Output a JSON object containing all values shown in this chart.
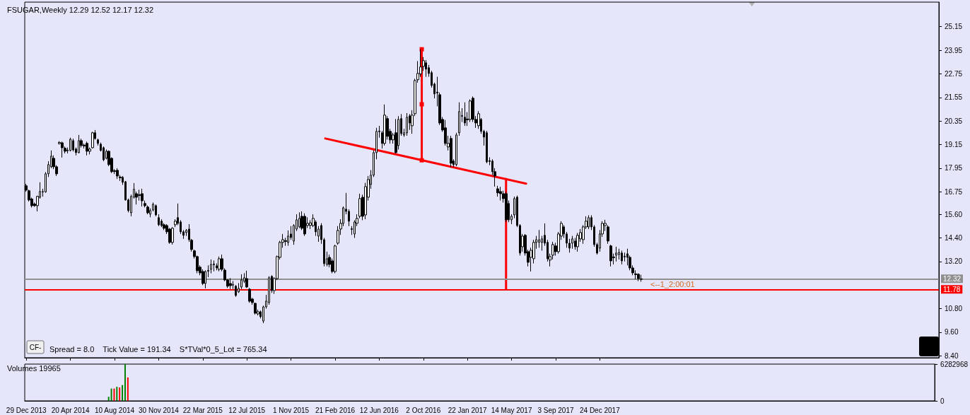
{
  "chart_data": [
    {
      "type": "candlestick",
      "title": "FSUGAR,Weekly 12.29 12.52 12.17 12.32",
      "color": "#000000",
      "xlim": [
        "2013-12-25",
        "2020-05-03"
      ],
      "ylim": [
        8.3,
        26.4
      ],
      "xticks": [
        {
          "value": "2013-12-29",
          "label": "29 Dec 2013"
        },
        {
          "value": "2014-04-20",
          "label": "20 Apr 2014"
        },
        {
          "value": "2014-08-10",
          "label": "10 Aug 2014"
        },
        {
          "value": "2014-11-30",
          "label": "30 Nov 2014"
        },
        {
          "value": "2015-03-22",
          "label": "22 Mar 2015"
        },
        {
          "value": "2015-07-12",
          "label": "12 Jul 2015"
        },
        {
          "value": "2015-11-01",
          "label": "1 Nov 2015"
        },
        {
          "value": "2016-02-21",
          "label": "21 Feb 2016"
        },
        {
          "value": "2016-06-12",
          "label": "12 Jun 2016"
        },
        {
          "value": "2016-10-02",
          "label": "2 Oct 2016"
        },
        {
          "value": "2017-01-22",
          "label": "22 Jan 2017"
        },
        {
          "value": "2017-05-14",
          "label": "14 May 2017"
        },
        {
          "value": "2017-09-03",
          "label": "3 Sep 2017"
        },
        {
          "value": "2017-12-24",
          "label": "24 Dec 2017"
        }
      ],
      "yticks": [
        {
          "value": 8.4,
          "label": "8.40"
        },
        {
          "value": 9.6,
          "label": "9.60"
        },
        {
          "value": 10.8,
          "label": "10.80"
        },
        {
          "value": 13.2,
          "label": "13.20"
        },
        {
          "value": 14.4,
          "label": "14.40"
        },
        {
          "value": 15.6,
          "label": "15.60"
        },
        {
          "value": 16.75,
          "label": "16.75"
        },
        {
          "value": 17.95,
          "label": "17.95"
        },
        {
          "value": 19.15,
          "label": "19.15"
        },
        {
          "value": 20.35,
          "label": "20.35"
        },
        {
          "value": 21.55,
          "label": "21.55"
        },
        {
          "value": 22.75,
          "label": "22.75"
        },
        {
          "value": 23.95,
          "label": "23.95"
        },
        {
          "value": 25.15,
          "label": "25.15"
        }
      ],
      "x": [
        "2013-12-29",
        "2014-01-05",
        "2014-01-12",
        "2014-01-19",
        "2014-01-26",
        "2014-02-02",
        "2014-02-09",
        "2014-02-16",
        "2014-02-23",
        "2014-03-02",
        "2014-03-09",
        "2014-03-16",
        "2014-03-23",
        "2014-03-30",
        "2014-04-06",
        "2014-04-13",
        "2014-04-20",
        "2014-04-27",
        "2014-05-04",
        "2014-05-11",
        "2014-05-18",
        "2014-05-25",
        "2014-06-01",
        "2014-06-08",
        "2014-06-15",
        "2014-06-22",
        "2014-06-29",
        "2014-07-06",
        "2014-07-13",
        "2014-07-20",
        "2014-07-27",
        "2014-08-03",
        "2014-08-10",
        "2014-08-17",
        "2014-08-24",
        "2014-08-31",
        "2014-09-07",
        "2014-09-14",
        "2014-09-21",
        "2014-09-28",
        "2014-10-05",
        "2014-10-12",
        "2014-10-19",
        "2014-10-26",
        "2014-11-02",
        "2014-11-09",
        "2014-11-16",
        "2014-11-23",
        "2014-11-30",
        "2014-12-07",
        "2014-12-14",
        "2014-12-21",
        "2014-12-28",
        "2015-01-04",
        "2015-01-11",
        "2015-01-18",
        "2015-01-25",
        "2015-02-01",
        "2015-02-08",
        "2015-02-15",
        "2015-02-22",
        "2015-03-01",
        "2015-03-08",
        "2015-03-15",
        "2015-03-22",
        "2015-03-29",
        "2015-04-05",
        "2015-04-12",
        "2015-04-19",
        "2015-04-26",
        "2015-05-03",
        "2015-05-10",
        "2015-05-17",
        "2015-05-24",
        "2015-05-31",
        "2015-06-07",
        "2015-06-14",
        "2015-06-21",
        "2015-06-28",
        "2015-07-05",
        "2015-07-12",
        "2015-07-19",
        "2015-07-26",
        "2015-08-02",
        "2015-08-09",
        "2015-08-16",
        "2015-08-23",
        "2015-08-30",
        "2015-09-06",
        "2015-09-13",
        "2015-09-20",
        "2015-09-27",
        "2015-10-04",
        "2015-10-11",
        "2015-10-18",
        "2015-10-25",
        "2015-11-01",
        "2015-11-08",
        "2015-11-15",
        "2015-11-22",
        "2015-11-29",
        "2015-12-06",
        "2015-12-13",
        "2015-12-20",
        "2015-12-27",
        "2016-01-03",
        "2016-01-10",
        "2016-01-17",
        "2016-01-24",
        "2016-01-31",
        "2016-02-07",
        "2016-02-14",
        "2016-02-21",
        "2016-02-28",
        "2016-03-06",
        "2016-03-13",
        "2016-03-20",
        "2016-03-27",
        "2016-04-03",
        "2016-04-10",
        "2016-04-17",
        "2016-04-24",
        "2016-05-01",
        "2016-05-08",
        "2016-05-15",
        "2016-05-22",
        "2016-05-29",
        "2016-06-05",
        "2016-06-12",
        "2016-06-19",
        "2016-06-26",
        "2016-07-03",
        "2016-07-10",
        "2016-07-17",
        "2016-07-24",
        "2016-07-31",
        "2016-08-07",
        "2016-08-14",
        "2016-08-21",
        "2016-08-28",
        "2016-09-04",
        "2016-09-11",
        "2016-09-18",
        "2016-09-25",
        "2016-10-02",
        "2016-10-09",
        "2016-10-16",
        "2016-10-23",
        "2016-10-30",
        "2016-11-06",
        "2016-11-13",
        "2016-11-20",
        "2016-11-27",
        "2016-12-04",
        "2016-12-11",
        "2016-12-18",
        "2016-12-25",
        "2017-01-01",
        "2017-01-08",
        "2017-01-15",
        "2017-01-22",
        "2017-01-29",
        "2017-02-05",
        "2017-02-12",
        "2017-02-19",
        "2017-02-26",
        "2017-03-05",
        "2017-03-12",
        "2017-03-19",
        "2017-03-26",
        "2017-04-02",
        "2017-04-09",
        "2017-04-16",
        "2017-04-23",
        "2017-04-30",
        "2017-05-07",
        "2017-05-14",
        "2017-05-21",
        "2017-05-28",
        "2017-06-04",
        "2017-06-11",
        "2017-06-18",
        "2017-06-25",
        "2017-07-02",
        "2017-07-09",
        "2017-07-16",
        "2017-07-23",
        "2017-07-30",
        "2017-08-06",
        "2017-08-13",
        "2017-08-20",
        "2017-08-27",
        "2017-09-03",
        "2017-09-10",
        "2017-09-17",
        "2017-09-24",
        "2017-10-01",
        "2017-10-08",
        "2017-10-15",
        "2017-10-22",
        "2017-10-29",
        "2017-11-05",
        "2017-11-12",
        "2017-11-19",
        "2017-11-26",
        "2017-12-03",
        "2017-12-10",
        "2017-12-17",
        "2017-12-24",
        "2017-12-31",
        "2018-01-07",
        "2018-01-14",
        "2018-01-21",
        "2018-01-28",
        "2018-02-04",
        "2018-02-11",
        "2018-02-18",
        "2018-02-25",
        "2018-03-04",
        "2018-03-11",
        "2018-03-18",
        "2018-03-25",
        "2018-04-01",
        "2018-04-08"
      ],
      "ohlc": [
        [
          17.05,
          17.15,
          16.75,
          16.83
        ],
        [
          16.8,
          16.85,
          16.25,
          16.33
        ],
        [
          16.38,
          16.45,
          15.95,
          16.04
        ],
        [
          16.12,
          16.2,
          15.98,
          16.04
        ],
        [
          16.04,
          16.55,
          15.75,
          16.51
        ],
        [
          16.47,
          17.23,
          16.4,
          16.76
        ],
        [
          16.76,
          16.9,
          16.5,
          16.74
        ],
        [
          16.74,
          17.75,
          16.7,
          17.66
        ],
        [
          17.66,
          18.3,
          17.5,
          18.13
        ],
        [
          18.02,
          18.85,
          17.95,
          18.56
        ],
        [
          18.45,
          18.6,
          17.9,
          18.02
        ],
        [
          18.02,
          18.1,
          17.55,
          17.66
        ],
        [
          19.2,
          19.32,
          19.15,
          19.26
        ],
        [
          19.24,
          19.3,
          18.49,
          18.99
        ],
        [
          18.96,
          19.05,
          18.7,
          18.81
        ],
        [
          18.83,
          19.0,
          18.7,
          18.87
        ],
        [
          18.85,
          19.5,
          18.8,
          19.42
        ],
        [
          19.35,
          19.45,
          18.8,
          18.88
        ],
        [
          18.92,
          19.0,
          18.6,
          18.74
        ],
        [
          18.74,
          19.64,
          18.7,
          19.35
        ],
        [
          19.35,
          19.45,
          19.0,
          19.1
        ],
        [
          19.12,
          19.2,
          18.95,
          19.08
        ],
        [
          19.21,
          19.3,
          18.6,
          18.81
        ],
        [
          18.81,
          19.0,
          18.65,
          18.92
        ],
        [
          18.99,
          19.8,
          18.95,
          19.75
        ],
        [
          19.75,
          19.89,
          19.4,
          19.46
        ],
        [
          19.39,
          19.45,
          19.1,
          19.21
        ],
        [
          19.17,
          19.25,
          18.8,
          18.85
        ],
        [
          18.99,
          19.05,
          18.3,
          18.38
        ],
        [
          18.45,
          18.9,
          18.4,
          18.81
        ],
        [
          18.81,
          18.85,
          18.05,
          18.13
        ],
        [
          18.45,
          18.5,
          17.7,
          17.77
        ],
        [
          17.82,
          17.9,
          17.65,
          17.78
        ],
        [
          17.84,
          17.95,
          17.4,
          17.55
        ],
        [
          17.5,
          17.6,
          17.3,
          17.46
        ],
        [
          17.48,
          17.55,
          17.1,
          17.23
        ],
        [
          17.26,
          17.3,
          16.3,
          16.33
        ],
        [
          16.33,
          16.4,
          15.7,
          15.79
        ],
        [
          15.68,
          16.6,
          15.5,
          16.51
        ],
        [
          16.47,
          17.19,
          16.4,
          16.87
        ],
        [
          16.65,
          16.75,
          16.1,
          16.47
        ],
        [
          16.6,
          16.85,
          16.3,
          16.56
        ],
        [
          16.65,
          16.9,
          16.0,
          16.29
        ],
        [
          16.15,
          16.3,
          15.95,
          16.04
        ],
        [
          15.97,
          16.05,
          15.6,
          15.68
        ],
        [
          15.61,
          15.9,
          15.45,
          15.79
        ],
        [
          15.82,
          16.2,
          15.75,
          16.11
        ],
        [
          16.04,
          16.1,
          15.5,
          15.57
        ],
        [
          15.43,
          15.6,
          15.0,
          15.07
        ],
        [
          15.25,
          15.35,
          14.95,
          15.03
        ],
        [
          15.07,
          15.15,
          14.8,
          14.89
        ],
        [
          15.03,
          15.1,
          14.6,
          14.71
        ],
        [
          14.85,
          14.9,
          14.1,
          14.17
        ],
        [
          14.17,
          14.95,
          14.06,
          14.89
        ],
        [
          15.07,
          15.35,
          14.95,
          15.25
        ],
        [
          15.43,
          16.15,
          15.05,
          15.14
        ],
        [
          15.21,
          15.3,
          14.6,
          14.71
        ],
        [
          14.71,
          14.8,
          14.35,
          14.53
        ],
        [
          14.67,
          14.85,
          14.5,
          14.78
        ],
        [
          14.85,
          15.1,
          14.2,
          14.31
        ],
        [
          14.28,
          14.35,
          13.7,
          13.81
        ],
        [
          13.74,
          13.8,
          13.35,
          13.45
        ],
        [
          13.45,
          13.5,
          12.6,
          12.73
        ],
        [
          12.91,
          13.0,
          12.5,
          12.62
        ],
        [
          12.69,
          12.8,
          12.0,
          12.08
        ],
        [
          12.08,
          12.75,
          11.83,
          12.69
        ],
        [
          12.7,
          13.0,
          12.4,
          12.75
        ],
        [
          12.8,
          13.3,
          12.6,
          13.05
        ],
        [
          13.03,
          13.25,
          12.7,
          13.07
        ],
        [
          12.98,
          13.1,
          12.75,
          12.87
        ],
        [
          12.8,
          13.45,
          12.7,
          13.34
        ],
        [
          13.34,
          13.55,
          12.7,
          12.8
        ],
        [
          12.76,
          12.85,
          12.2,
          12.26
        ],
        [
          12.26,
          12.3,
          11.85,
          11.94
        ],
        [
          12.08,
          12.35,
          11.8,
          11.97
        ],
        [
          12.0,
          12.2,
          11.8,
          12.02
        ],
        [
          11.94,
          12.0,
          11.4,
          11.47
        ],
        [
          11.65,
          12.1,
          11.6,
          11.83
        ],
        [
          11.9,
          12.55,
          11.8,
          12.26
        ],
        [
          12.19,
          12.6,
          12.1,
          12.37
        ],
        [
          12.33,
          12.73,
          11.85,
          11.9
        ],
        [
          11.79,
          11.85,
          11.1,
          11.18
        ],
        [
          11.29,
          11.35,
          11.0,
          11.11
        ],
        [
          11.07,
          11.1,
          10.5,
          10.57
        ],
        [
          10.53,
          10.75,
          10.45,
          10.64
        ],
        [
          10.64,
          10.7,
          10.3,
          10.39
        ],
        [
          10.17,
          10.95,
          10.06,
          10.89
        ],
        [
          10.89,
          11.5,
          10.8,
          11.18
        ],
        [
          11.11,
          12.45,
          11.0,
          12.37
        ],
        [
          12.44,
          12.5,
          11.6,
          11.72
        ],
        [
          11.72,
          12.4,
          11.55,
          12.33
        ],
        [
          12.33,
          13.5,
          12.25,
          13.45
        ],
        [
          13.41,
          14.25,
          13.3,
          14.17
        ],
        [
          14.17,
          14.6,
          13.9,
          14.31
        ],
        [
          14.22,
          14.4,
          14.0,
          14.26
        ],
        [
          14.17,
          14.78,
          14.0,
          14.49
        ],
        [
          14.6,
          15.0,
          14.3,
          14.42
        ],
        [
          14.24,
          15.1,
          14.05,
          15.03
        ],
        [
          14.85,
          15.6,
          14.75,
          15.32
        ],
        [
          14.96,
          15.7,
          14.9,
          15.39
        ],
        [
          15.5,
          15.75,
          14.8,
          14.89
        ],
        [
          15.5,
          15.65,
          14.5,
          14.6
        ],
        [
          15.03,
          15.45,
          14.9,
          15.14
        ],
        [
          15.04,
          15.3,
          14.85,
          15.16
        ],
        [
          15.03,
          15.6,
          14.95,
          15.39
        ],
        [
          15.21,
          15.3,
          14.5,
          14.71
        ],
        [
          14.49,
          15.0,
          14.2,
          14.85
        ],
        [
          15.03,
          15.15,
          14.1,
          14.31
        ],
        [
          14.31,
          14.4,
          12.95,
          13.09
        ],
        [
          13.05,
          13.7,
          12.95,
          13.34
        ],
        [
          13.41,
          13.55,
          12.9,
          13.05
        ],
        [
          13.23,
          13.35,
          12.6,
          12.69
        ],
        [
          12.69,
          14.05,
          12.6,
          13.99
        ],
        [
          14.13,
          15.0,
          14.05,
          14.78
        ],
        [
          14.85,
          15.35,
          14.55,
          15.14
        ],
        [
          15.14,
          16.0,
          15.0,
          15.93
        ],
        [
          15.86,
          16.69,
          15.6,
          15.75
        ],
        [
          15.75,
          15.85,
          15.0,
          15.25
        ],
        [
          14.83,
          15.0,
          14.55,
          14.87
        ],
        [
          14.6,
          15.3,
          14.4,
          15.21
        ],
        [
          15.14,
          15.6,
          15.0,
          15.39
        ],
        [
          15.5,
          16.65,
          15.4,
          16.4
        ],
        [
          16.47,
          16.6,
          15.3,
          15.5
        ],
        [
          15.57,
          17.2,
          15.35,
          17.01
        ],
        [
          16.47,
          17.55,
          16.3,
          17.37
        ],
        [
          17.12,
          17.85,
          16.9,
          17.59
        ],
        [
          17.59,
          18.85,
          17.5,
          18.74
        ],
        [
          18.74,
          20.0,
          18.4,
          19.82
        ],
        [
          19.8,
          20.1,
          19.5,
          19.84
        ],
        [
          19.75,
          19.85,
          18.95,
          19.21
        ],
        [
          19.21,
          21.19,
          19.1,
          20.65
        ],
        [
          20.47,
          20.6,
          19.4,
          19.57
        ],
        [
          19.82,
          19.95,
          19.2,
          19.39
        ],
        [
          19.39,
          19.75,
          19.2,
          19.64
        ],
        [
          19.75,
          20.45,
          18.7,
          18.74
        ],
        [
          19.1,
          20.6,
          18.9,
          20.43
        ],
        [
          20.47,
          20.7,
          19.6,
          19.71
        ],
        [
          19.64,
          19.95,
          19.55,
          19.75
        ],
        [
          19.75,
          20.75,
          19.6,
          20.54
        ],
        [
          20.61,
          20.7,
          19.9,
          20.25
        ],
        [
          20.11,
          20.9,
          19.7,
          20.65
        ],
        [
          20.72,
          22.5,
          20.6,
          22.41
        ],
        [
          22.45,
          23.4,
          22.3,
          22.77
        ],
        [
          22.75,
          24.0,
          22.6,
          23.1
        ],
        [
          23.13,
          23.6,
          22.9,
          23.42
        ],
        [
          23.31,
          23.45,
          22.6,
          22.99
        ],
        [
          23.06,
          23.2,
          22.6,
          22.77
        ],
        [
          22.81,
          22.9,
          22.05,
          22.16
        ],
        [
          22.23,
          22.3,
          21.5,
          21.73
        ],
        [
          21.82,
          22.6,
          21.1,
          21.78
        ],
        [
          21.69,
          21.8,
          20.15,
          20.25
        ],
        [
          20.43,
          20.55,
          19.8,
          19.89
        ],
        [
          20.0,
          20.4,
          19.1,
          19.21
        ],
        [
          19.03,
          19.6,
          18.85,
          19.21
        ],
        [
          19.46,
          19.6,
          18.0,
          18.2
        ],
        [
          18.31,
          18.4,
          18.0,
          18.13
        ],
        [
          18.13,
          19.75,
          18.05,
          19.64
        ],
        [
          19.75,
          21.3,
          19.6,
          20.83
        ],
        [
          20.59,
          21.0,
          20.3,
          20.63
        ],
        [
          20.54,
          21.3,
          20.1,
          20.25
        ],
        [
          20.45,
          20.8,
          20.1,
          20.41
        ],
        [
          20.43,
          21.45,
          20.3,
          21.37
        ],
        [
          21.51,
          21.6,
          20.3,
          20.43
        ],
        [
          20.43,
          20.6,
          20.0,
          20.25
        ],
        [
          20.11,
          20.85,
          19.95,
          20.72
        ],
        [
          20.43,
          20.5,
          19.7,
          19.82
        ],
        [
          19.82,
          19.9,
          19.1,
          19.53
        ],
        [
          19.75,
          19.85,
          18.2,
          18.27
        ],
        [
          18.33,
          18.5,
          18.1,
          18.29
        ],
        [
          18.31,
          18.4,
          17.6,
          17.77
        ],
        [
          17.77,
          17.95,
          17.01,
          17.55
        ],
        [
          16.9,
          17.05,
          16.5,
          16.69
        ],
        [
          16.76,
          17.0,
          16.3,
          16.65
        ],
        [
          16.65,
          16.8,
          16.2,
          16.4
        ],
        [
          16.65,
          16.75,
          15.2,
          15.32
        ],
        [
          16.15,
          16.3,
          15.2,
          15.32
        ],
        [
          15.32,
          15.6,
          15.1,
          15.5
        ],
        [
          15.57,
          16.5,
          15.4,
          16.4
        ],
        [
          16.47,
          16.55,
          14.95,
          15.03
        ],
        [
          15.03,
          15.1,
          13.5,
          13.63
        ],
        [
          13.95,
          14.6,
          13.7,
          14.49
        ],
        [
          14.53,
          14.6,
          13.5,
          13.63
        ],
        [
          13.7,
          13.8,
          12.95,
          13.16
        ],
        [
          13.41,
          13.9,
          12.69,
          13.77
        ],
        [
          13.34,
          14.3,
          13.1,
          14.17
        ],
        [
          14.17,
          14.5,
          13.85,
          14.31
        ],
        [
          14.18,
          14.8,
          13.9,
          14.3
        ],
        [
          14.17,
          14.5,
          13.75,
          14.35
        ],
        [
          14.53,
          15.14,
          14.0,
          14.13
        ],
        [
          14.17,
          14.3,
          13.2,
          13.34
        ],
        [
          13.27,
          13.6,
          12.95,
          13.45
        ],
        [
          13.52,
          14.2,
          13.3,
          14.06
        ],
        [
          13.99,
          14.15,
          13.5,
          13.7
        ],
        [
          13.7,
          14.7,
          13.6,
          14.6
        ],
        [
          14.49,
          15.25,
          14.3,
          15.14
        ],
        [
          14.96,
          15.05,
          14.4,
          14.6
        ],
        [
          14.6,
          14.7,
          13.9,
          14.13
        ],
        [
          14.13,
          14.35,
          13.65,
          13.88
        ],
        [
          14.13,
          14.5,
          13.85,
          14.35
        ],
        [
          14.24,
          14.4,
          13.8,
          13.95
        ],
        [
          13.95,
          14.65,
          13.7,
          14.53
        ],
        [
          14.35,
          14.85,
          14.2,
          14.67
        ],
        [
          14.31,
          15.05,
          14.1,
          14.96
        ],
        [
          14.96,
          15.5,
          14.85,
          15.25
        ],
        [
          14.96,
          15.55,
          14.85,
          15.43
        ],
        [
          15.43,
          15.55,
          14.8,
          14.96
        ],
        [
          14.96,
          15.05,
          13.95,
          14.06
        ],
        [
          14.06,
          14.15,
          13.55,
          13.63
        ],
        [
          13.88,
          14.8,
          13.7,
          14.6
        ],
        [
          14.6,
          15.25,
          14.45,
          15.14
        ],
        [
          15.03,
          15.32,
          14.75,
          15.14
        ],
        [
          14.96,
          15.05,
          14.1,
          14.24
        ],
        [
          13.99,
          14.05,
          12.95,
          13.23
        ],
        [
          13.39,
          13.6,
          13.05,
          13.43
        ],
        [
          13.52,
          13.95,
          13.2,
          13.63
        ],
        [
          13.55,
          13.85,
          13.3,
          13.66
        ],
        [
          13.63,
          13.75,
          13.05,
          13.23
        ],
        [
          13.43,
          13.65,
          13.2,
          13.47
        ],
        [
          13.59,
          13.85,
          13.0,
          13.41
        ],
        [
          13.41,
          13.5,
          12.75,
          12.87
        ],
        [
          12.87,
          13.0,
          12.5,
          12.62
        ],
        [
          12.57,
          12.75,
          12.3,
          12.53
        ],
        [
          12.55,
          12.6,
          12.2,
          12.33
        ],
        [
          12.29,
          12.52,
          12.17,
          12.32
        ]
      ],
      "series": [
        {
          "type": "line",
          "x": [
            "2016-01-27",
            "2017-06-20"
          ],
          "values": [
            19.46,
            17.16
          ],
          "color": "#ff0000",
          "marker": "none"
        },
        {
          "type": "line",
          "x": [
            "2016-09-28",
            "2016-09-28",
            "2016-09-28"
          ],
          "values": [
            24.0,
            21.2,
            18.35
          ],
          "color": "#ff0000",
          "marker": "square"
        },
        {
          "type": "line",
          "x": [
            "2017-04-30",
            "2017-04-30"
          ],
          "values": [
            17.4,
            11.78
          ],
          "color": "#ff0000",
          "marker": "none"
        }
      ],
      "ref_lines": [
        {
          "axis": "y",
          "value": 12.32,
          "label": "12.32",
          "color": "#909090"
        },
        {
          "axis": "y",
          "value": 11.78,
          "label": "11.78",
          "color": "#ff0000"
        }
      ],
      "annotations": [
        "CF-",
        "Spread = 8.0    Tick Value = 191.34    S*TVal*0_5_Lot = 765.34",
        "<--1_2:00:01"
      ]
    },
    {
      "type": "bar",
      "title": "Volumes 19965",
      "xlim": [
        "2013-12-25",
        "2020-05-03"
      ],
      "ylim": [
        0,
        6282968
      ],
      "yticks": [
        0,
        6282968
      ],
      "tick_labels": "y",
      "x": [
        "2014-07-27",
        "2014-08-03",
        "2014-08-10",
        "2014-08-17",
        "2014-08-24",
        "2014-08-31",
        "2014-09-07",
        "2014-09-14"
      ],
      "values": [
        700000,
        2100000,
        2100000,
        2400000,
        2300000,
        2700000,
        6282968,
        4000000
      ],
      "colors": [
        "#008000",
        "#008000",
        "#ff0000",
        "#008000",
        "#ff0000",
        "#008000",
        "#008000",
        "#ff0000"
      ]
    }
  ]
}
